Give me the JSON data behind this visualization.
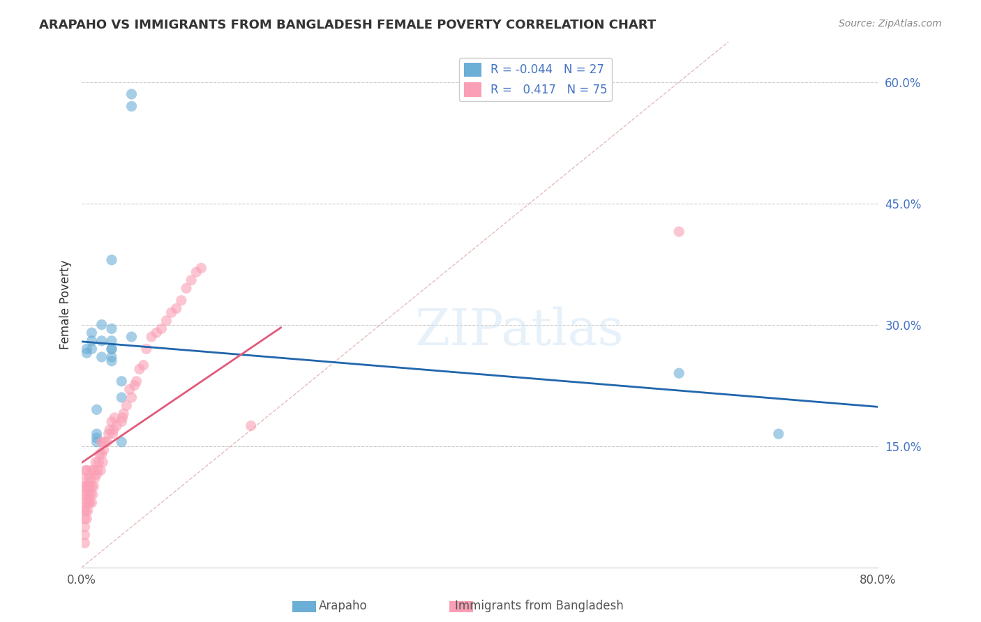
{
  "title": "ARAPAHO VS IMMIGRANTS FROM BANGLADESH FEMALE POVERTY CORRELATION CHART",
  "source": "Source: ZipAtlas.com",
  "xlabel": "",
  "ylabel": "Female Poverty",
  "xlim": [
    0.0,
    0.8
  ],
  "ylim": [
    0.0,
    0.65
  ],
  "xticks": [
    0.0,
    0.2,
    0.4,
    0.6,
    0.8
  ],
  "xticklabels": [
    "0.0%",
    "",
    "",
    "",
    "80.0%"
  ],
  "yticks_right": [
    0.15,
    0.3,
    0.45,
    0.6
  ],
  "ytick_labels_right": [
    "15.0%",
    "30.0%",
    "45.0%",
    "60.0%"
  ],
  "legend_blue_R": "-0.044",
  "legend_blue_N": "27",
  "legend_pink_R": "0.417",
  "legend_pink_N": "75",
  "watermark": "ZIPatlas",
  "blue_color": "#6baed6",
  "pink_color": "#fa9fb5",
  "blue_line_color": "#2166ac",
  "pink_line_color": "#e05a7a",
  "diagonal_color": "#d9a0a0",
  "arapaho_x": [
    0.03,
    0.03,
    0.04,
    0.04,
    0.04,
    0.05,
    0.005,
    0.005,
    0.01,
    0.01,
    0.01,
    0.015,
    0.015,
    0.015,
    0.015,
    0.02,
    0.02,
    0.02,
    0.03,
    0.03,
    0.03,
    0.03,
    0.03,
    0.05,
    0.05,
    0.6,
    0.7
  ],
  "arapaho_y": [
    0.27,
    0.28,
    0.155,
    0.21,
    0.23,
    0.285,
    0.265,
    0.27,
    0.27,
    0.28,
    0.29,
    0.155,
    0.16,
    0.165,
    0.195,
    0.26,
    0.28,
    0.3,
    0.26,
    0.255,
    0.27,
    0.295,
    0.38,
    0.585,
    0.57,
    0.24,
    0.165
  ],
  "bangladesh_x": [
    0.003,
    0.003,
    0.003,
    0.003,
    0.003,
    0.003,
    0.003,
    0.003,
    0.003,
    0.004,
    0.004,
    0.004,
    0.005,
    0.005,
    0.005,
    0.005,
    0.006,
    0.006,
    0.007,
    0.007,
    0.007,
    0.008,
    0.008,
    0.009,
    0.009,
    0.01,
    0.01,
    0.01,
    0.011,
    0.012,
    0.012,
    0.013,
    0.014,
    0.015,
    0.016,
    0.017,
    0.018,
    0.019,
    0.02,
    0.02,
    0.021,
    0.022,
    0.023,
    0.025,
    0.027,
    0.028,
    0.03,
    0.031,
    0.032,
    0.033,
    0.035,
    0.04,
    0.041,
    0.042,
    0.045,
    0.048,
    0.05,
    0.053,
    0.055,
    0.058,
    0.062,
    0.065,
    0.07,
    0.075,
    0.08,
    0.085,
    0.09,
    0.095,
    0.1,
    0.105,
    0.11,
    0.115,
    0.12,
    0.17,
    0.6
  ],
  "bangladesh_y": [
    0.03,
    0.04,
    0.05,
    0.06,
    0.07,
    0.08,
    0.09,
    0.1,
    0.11,
    0.07,
    0.09,
    0.12,
    0.06,
    0.08,
    0.1,
    0.12,
    0.07,
    0.1,
    0.08,
    0.09,
    0.11,
    0.08,
    0.1,
    0.09,
    0.11,
    0.08,
    0.1,
    0.12,
    0.09,
    0.1,
    0.12,
    0.11,
    0.13,
    0.115,
    0.12,
    0.13,
    0.14,
    0.12,
    0.14,
    0.155,
    0.13,
    0.145,
    0.155,
    0.155,
    0.165,
    0.17,
    0.18,
    0.165,
    0.17,
    0.185,
    0.175,
    0.18,
    0.185,
    0.19,
    0.2,
    0.22,
    0.21,
    0.225,
    0.23,
    0.245,
    0.25,
    0.27,
    0.285,
    0.29,
    0.295,
    0.305,
    0.315,
    0.32,
    0.33,
    0.345,
    0.355,
    0.365,
    0.37,
    0.175,
    0.415
  ]
}
